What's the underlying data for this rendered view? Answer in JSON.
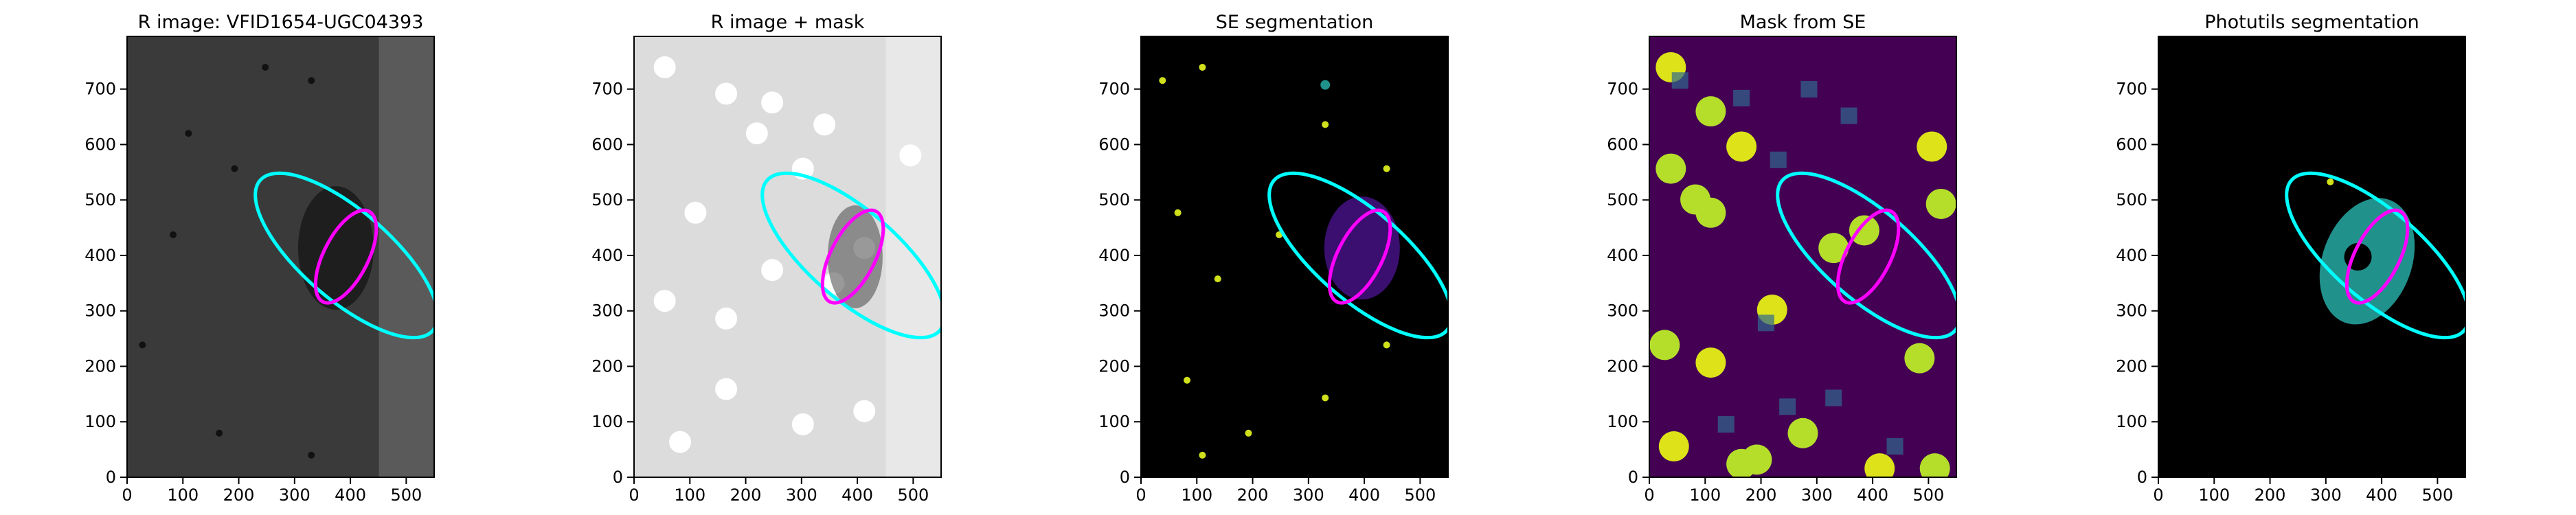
{
  "chart_data": [
    {
      "type": "image",
      "title": "R image: VFID1654-UGC04393",
      "background": "#3a3a3a",
      "xlim": [
        0,
        550
      ],
      "ylim": [
        0,
        795
      ],
      "xticks": [
        0,
        100,
        200,
        300,
        400,
        500
      ],
      "yticks": [
        0,
        100,
        200,
        300,
        400,
        500,
        600,
        700
      ],
      "ellipses": [
        {
          "color": "#00ffff",
          "center": [
            393,
            400
          ],
          "semi_axes": [
            205,
            80
          ],
          "angle": -41
        },
        {
          "color": "#ff00ff",
          "center": [
            392,
            398
          ],
          "semi_axes": [
            91,
            40
          ],
          "angle": 63
        }
      ]
    },
    {
      "type": "image",
      "title": "R image + mask",
      "background": "#dcdcdc",
      "xlim": [
        0,
        550
      ],
      "ylim": [
        0,
        795
      ],
      "xticks": [
        0,
        100,
        200,
        300,
        400,
        500
      ],
      "yticks": [
        0,
        100,
        200,
        300,
        400,
        500,
        600,
        700
      ],
      "ellipses": [
        {
          "color": "#00ffff",
          "center": [
            393,
            400
          ],
          "semi_axes": [
            205,
            80
          ],
          "angle": -41
        },
        {
          "color": "#ff00ff",
          "center": [
            392,
            398
          ],
          "semi_axes": [
            91,
            40
          ],
          "angle": 63
        }
      ]
    },
    {
      "type": "image",
      "title": "SE segmentation",
      "background": "#000000",
      "xlim": [
        0,
        550
      ],
      "ylim": [
        0,
        795
      ],
      "xticks": [
        0,
        100,
        200,
        300,
        400,
        500
      ],
      "yticks": [
        0,
        100,
        200,
        300,
        400,
        500,
        600,
        700
      ],
      "ellipses": [
        {
          "color": "#00ffff",
          "center": [
            393,
            400
          ],
          "semi_axes": [
            205,
            80
          ],
          "angle": -41
        },
        {
          "color": "#ff00ff",
          "center": [
            392,
            398
          ],
          "semi_axes": [
            91,
            40
          ],
          "angle": 63
        }
      ]
    },
    {
      "type": "image",
      "title": "Mask from SE",
      "background": "#440154",
      "xlim": [
        0,
        550
      ],
      "ylim": [
        0,
        795
      ],
      "xticks": [
        0,
        100,
        200,
        300,
        400,
        500
      ],
      "yticks": [
        0,
        100,
        200,
        300,
        400,
        500,
        600,
        700
      ],
      "ellipses": [
        {
          "color": "#00ffff",
          "center": [
            393,
            400
          ],
          "semi_axes": [
            205,
            80
          ],
          "angle": -41
        },
        {
          "color": "#ff00ff",
          "center": [
            392,
            398
          ],
          "semi_axes": [
            91,
            40
          ],
          "angle": 63
        }
      ]
    },
    {
      "type": "image",
      "title": "Photutils segmentation",
      "background": "#000000",
      "xlim": [
        0,
        550
      ],
      "ylim": [
        0,
        795
      ],
      "xticks": [
        0,
        100,
        200,
        300,
        400,
        500
      ],
      "yticks": [
        0,
        100,
        200,
        300,
        400,
        500,
        600,
        700
      ],
      "ellipses": [
        {
          "color": "#00ffff",
          "center": [
            393,
            400
          ],
          "semi_axes": [
            205,
            80
          ],
          "angle": -41
        },
        {
          "color": "#ff00ff",
          "center": [
            392,
            398
          ],
          "semi_axes": [
            91,
            40
          ],
          "angle": 63
        }
      ]
    }
  ]
}
